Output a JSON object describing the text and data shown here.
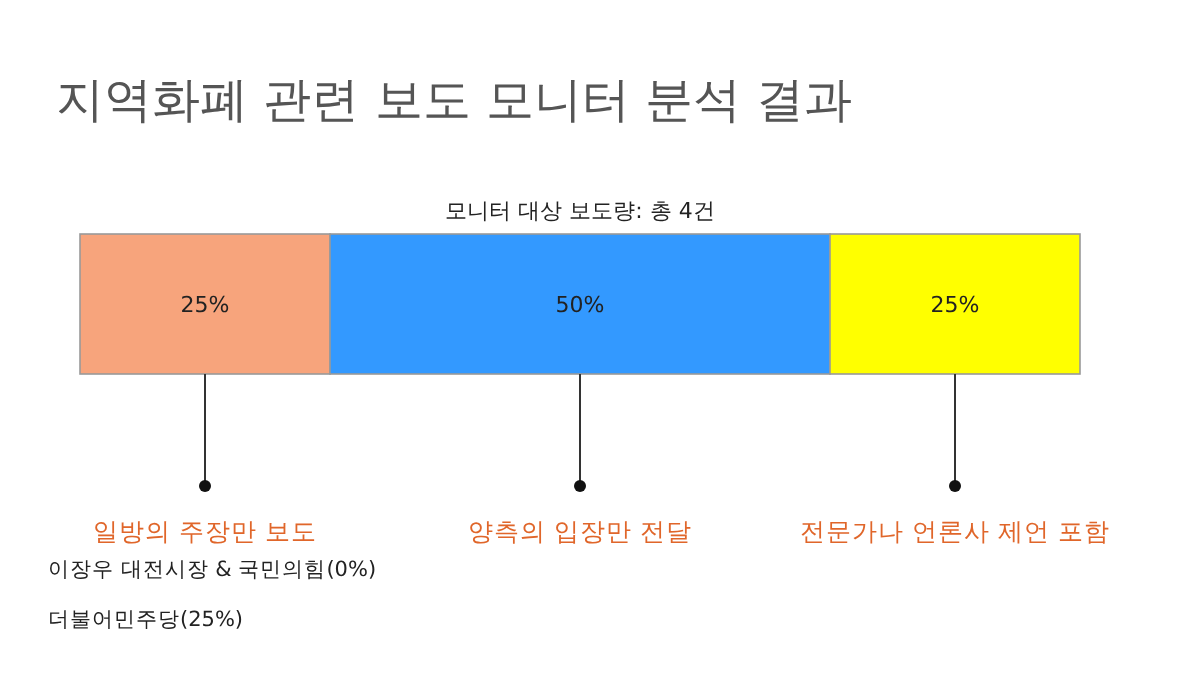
{
  "chart_data": {
    "type": "bar",
    "orientation": "horizontal",
    "stacked": true,
    "title": "지역화폐 관련 보도 모니터 분석 결과",
    "subtitle": "모니터 대상 보도량: 총 4건",
    "categories": [
      null
    ],
    "series": [
      {
        "name": "일방의 주장만 보도",
        "color": "#f7a47c",
        "values": [
          25
        ],
        "value_labels": [
          "25%"
        ]
      },
      {
        "name": "양측의 입장만 전달",
        "color": "#3399ff",
        "values": [
          50
        ],
        "value_labels": [
          "50%"
        ]
      },
      {
        "name": "전문가나 언론사 제언 포함",
        "color": "#ffff00",
        "values": [
          25
        ],
        "value_labels": [
          "25%"
        ]
      }
    ],
    "annotations": [
      "이장우 대전시장 & 국민의힘(0%)",
      "더불어민주당(25%)"
    ]
  }
}
